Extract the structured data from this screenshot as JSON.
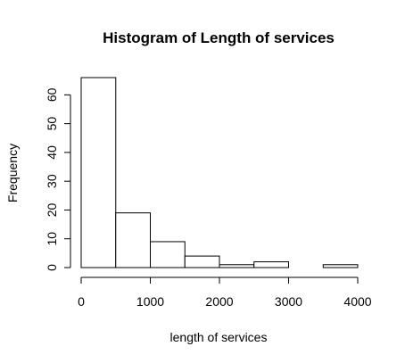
{
  "chart_data": {
    "type": "bar",
    "subtype": "histogram",
    "title": "Histogram of Length of services",
    "xlabel": "length of services",
    "ylabel": "Frequency",
    "bins": [
      {
        "start": 0,
        "end": 500,
        "count": 66
      },
      {
        "start": 500,
        "end": 1000,
        "count": 19
      },
      {
        "start": 1000,
        "end": 1500,
        "count": 9
      },
      {
        "start": 1500,
        "end": 2000,
        "count": 4
      },
      {
        "start": 2000,
        "end": 2500,
        "count": 1
      },
      {
        "start": 2500,
        "end": 3000,
        "count": 2
      },
      {
        "start": 3000,
        "end": 3500,
        "count": 0
      },
      {
        "start": 3500,
        "end": 4000,
        "count": 1
      }
    ],
    "xlim": [
      0,
      4000
    ],
    "ylim": [
      0,
      66
    ],
    "x_ticks": [
      0,
      1000,
      2000,
      3000,
      4000
    ],
    "y_ticks": [
      0,
      10,
      20,
      30,
      40,
      50,
      60
    ],
    "grid": false,
    "legend": "none",
    "colors": {
      "bar_fill": "#ffffff",
      "bar_stroke": "#000000"
    }
  }
}
